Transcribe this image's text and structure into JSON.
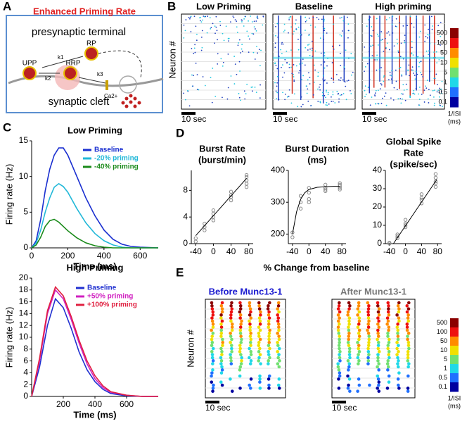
{
  "panels": [
    "A",
    "B",
    "C",
    "D",
    "E"
  ],
  "diagram": {
    "title": "Enhanced Priming Rate",
    "terminal": "presynaptic  terminal",
    "rp": "RP",
    "upp": "UPP",
    "rrp": "RRP",
    "k1": "k1",
    "k2": "k2",
    "k3": "k3",
    "ca": "Ca2+",
    "cleft": "synaptic cleft"
  },
  "rasters": {
    "ylabel": "Neuron #",
    "titles": [
      "Low Priming",
      "Baseline",
      "High priming"
    ],
    "scale": "10 sec"
  },
  "munc": {
    "titles": [
      "Before Munc13-1",
      "After Munc13-1"
    ],
    "colors": [
      "#1a1ad0",
      "#777777"
    ]
  },
  "colorbar": {
    "ticks": [
      500,
      100,
      50,
      10,
      5,
      1,
      0.5,
      0.1
    ],
    "colors": [
      "#8b0000",
      "#ee1010",
      "#ff8c00",
      "#f0e000",
      "#70e070",
      "#20d8e8",
      "#2070ff",
      "#0000a0"
    ],
    "unit": [
      "1/ISI",
      "(ms)"
    ]
  },
  "d_xlabel": "% Change from baseline",
  "chart_data": [
    {
      "type": "line",
      "title": "Low Priming",
      "xlabel": "Time (ms)",
      "ylabel": "Firing rate (Hz)",
      "x": [
        0,
        25,
        50,
        75,
        100,
        125,
        150,
        175,
        200,
        250,
        300,
        350,
        400,
        450,
        500,
        550,
        600,
        700
      ],
      "series": [
        {
          "name": "Baseline",
          "color": "#1a2fd0",
          "values": [
            0,
            1,
            4,
            8,
            11,
            13,
            14,
            14,
            13,
            10,
            7,
            4.5,
            2.5,
            1.2,
            0.5,
            0.2,
            0.1,
            0
          ]
        },
        {
          "name": "-20% priming",
          "color": "#22b8d8",
          "values": [
            0,
            0.7,
            2.5,
            5,
            7,
            8.5,
            9,
            8.6,
            7.8,
            5.5,
            3.5,
            2,
            1,
            0.4,
            0.1,
            0,
            0,
            0
          ]
        },
        {
          "name": "-40% priming",
          "color": "#1a8a1a",
          "values": [
            0,
            0.4,
            1.5,
            3,
            3.8,
            4,
            3.6,
            3,
            2.4,
            1.4,
            0.7,
            0.3,
            0.1,
            0,
            0,
            0,
            0,
            0
          ]
        }
      ],
      "xlim": [
        0,
        700
      ],
      "ylim": [
        0,
        15
      ],
      "xticks": [
        0,
        200,
        400,
        600
      ],
      "yticks": [
        0,
        5,
        10,
        15
      ]
    },
    {
      "type": "line",
      "title": "High Priming",
      "xlabel": "Time (ms)",
      "ylabel": "Firing rate (Hz)",
      "x": [
        0,
        50,
        100,
        150,
        200,
        250,
        300,
        350,
        400,
        450,
        500,
        600,
        700,
        800
      ],
      "series": [
        {
          "name": "Baseline",
          "color": "#2030d0",
          "values": [
            0,
            5,
            12,
            16.5,
            15,
            11.5,
            7.5,
            4.5,
            2.5,
            1.2,
            0.5,
            0.1,
            0,
            0
          ]
        },
        {
          "name": "+50% priming",
          "color": "#d020c0",
          "values": [
            0,
            6,
            14,
            18,
            16.5,
            13,
            9,
            5.5,
            3,
            1.5,
            0.7,
            0.2,
            0,
            0
          ]
        },
        {
          "name": "+100% priming",
          "color": "#e02040",
          "values": [
            0,
            6.5,
            14.5,
            18.5,
            17,
            13.5,
            9.5,
            6,
            3.5,
            1.8,
            0.8,
            0.2,
            0,
            0
          ]
        }
      ],
      "xlim": [
        0,
        800
      ],
      "ylim": [
        0,
        20
      ],
      "xticks": [
        200,
        400,
        600
      ],
      "yticks": [
        0,
        2,
        4,
        6,
        8,
        10,
        12,
        14,
        16,
        18,
        20
      ]
    },
    {
      "type": "scatter",
      "title": "Burst Rate",
      "subtitle": "(burst/min)",
      "x": [
        -40,
        -40,
        -20,
        -20,
        -20,
        0,
        0,
        0,
        0,
        40,
        40,
        40,
        40,
        75,
        75,
        75,
        75,
        75
      ],
      "values": [
        0.3,
        0.8,
        2,
        2.5,
        3,
        3.5,
        4,
        4.5,
        5,
        6.5,
        7,
        7.3,
        7.8,
        8.5,
        9,
        9.5,
        10,
        10.3
      ],
      "fit": {
        "x": [
          -40,
          75
        ],
        "y": [
          1.2,
          9.8
        ]
      },
      "color": "#888888",
      "xlim": [
        -50,
        90
      ],
      "ylim": [
        0,
        11
      ],
      "xticks": [
        -40,
        0,
        40,
        80
      ],
      "yticks": [
        0,
        4,
        8
      ]
    },
    {
      "type": "scatter",
      "title": "Burst Duration",
      "subtitle": "(ms)",
      "x": [
        -40,
        -40,
        -20,
        -20,
        -20,
        0,
        0,
        0,
        0,
        40,
        40,
        40,
        40,
        75,
        75,
        75,
        75,
        75
      ],
      "values": [
        205,
        190,
        280,
        300,
        320,
        300,
        310,
        330,
        345,
        335,
        340,
        345,
        355,
        340,
        345,
        350,
        355,
        360
      ],
      "fit": {
        "x": [
          -40,
          -30,
          -20,
          -10,
          0,
          20,
          40,
          60,
          75
        ],
        "y": [
          200,
          270,
          310,
          330,
          340,
          347,
          349,
          350,
          350
        ]
      },
      "color": "#888888",
      "xlim": [
        -50,
        90
      ],
      "ylim": [
        170,
        400
      ],
      "xticks": [
        -40,
        0,
        40,
        80
      ],
      "yticks": [
        200,
        300,
        400
      ]
    },
    {
      "type": "scatter",
      "title": "Global Spike",
      "subtitle": "Rate",
      "subtitle2": "(spike/sec)",
      "x": [
        -40,
        -40,
        -20,
        -20,
        -20,
        0,
        0,
        0,
        0,
        40,
        40,
        40,
        40,
        75,
        75,
        75,
        75,
        75
      ],
      "values": [
        0,
        0.5,
        3,
        4,
        5,
        9,
        10,
        11,
        13,
        22,
        24,
        25,
        27,
        31,
        33,
        34,
        36,
        38
      ],
      "fit": {
        "x": [
          -30,
          78
        ],
        "y": [
          0,
          35
        ]
      },
      "color": "#888888",
      "xlim": [
        -50,
        90
      ],
      "ylim": [
        0,
        40
      ],
      "xticks": [
        -40,
        0,
        40,
        80
      ],
      "yticks": [
        0,
        10,
        20,
        30,
        40
      ]
    }
  ]
}
